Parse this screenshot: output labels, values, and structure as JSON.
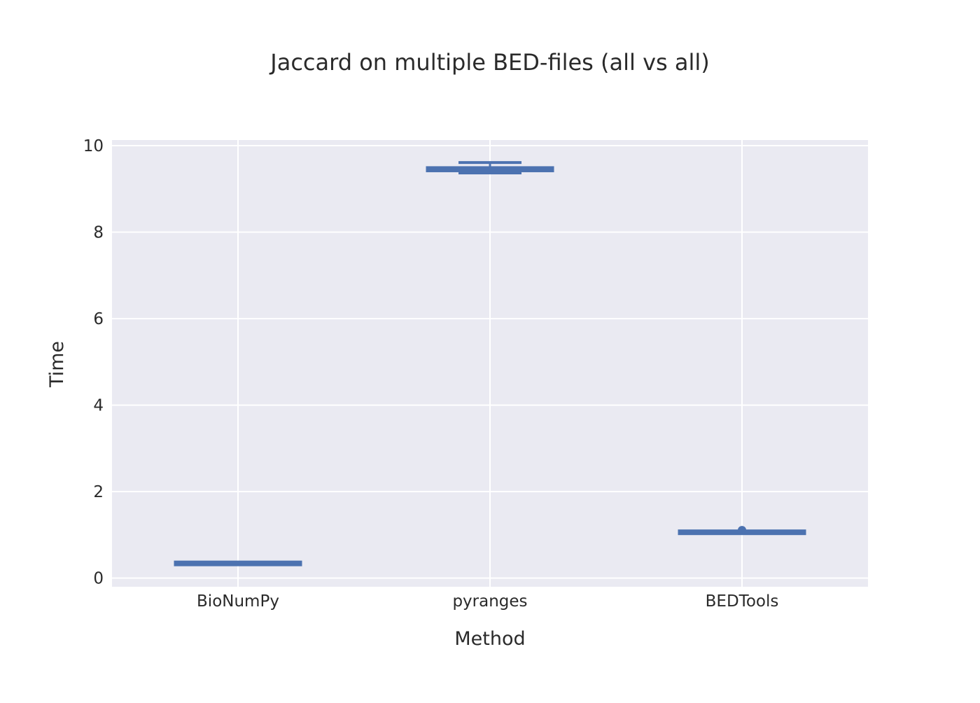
{
  "chart_data": {
    "type": "box",
    "title": "Jaccard on multiple BED-files (all vs all)",
    "xlabel": "Method",
    "ylabel": "Time",
    "ylim": [
      -0.2,
      10.13
    ],
    "yticks": [
      0,
      2,
      4,
      6,
      8,
      10
    ],
    "grid": true,
    "legend": "none",
    "categories": [
      "BioNumPy",
      "pyranges",
      "BEDTools"
    ],
    "boxes": [
      {
        "category": "BioNumPy",
        "min": 0.32,
        "q1": 0.33,
        "median": 0.34,
        "q3": 0.35,
        "max": 0.36,
        "outliers": []
      },
      {
        "category": "pyranges",
        "min": 9.37,
        "q1": 9.41,
        "median": 9.45,
        "q3": 9.5,
        "max": 9.61,
        "outliers": []
      },
      {
        "category": "BEDTools",
        "min": 1.04,
        "q1": 1.05,
        "median": 1.06,
        "q3": 1.07,
        "max": 1.08,
        "outliers": [
          1.11
        ]
      }
    ],
    "colors": {
      "box": "#4c72b0",
      "plot_background": "#eaeaf2",
      "grid": "#ffffff",
      "text": "#2a2a2a"
    }
  }
}
